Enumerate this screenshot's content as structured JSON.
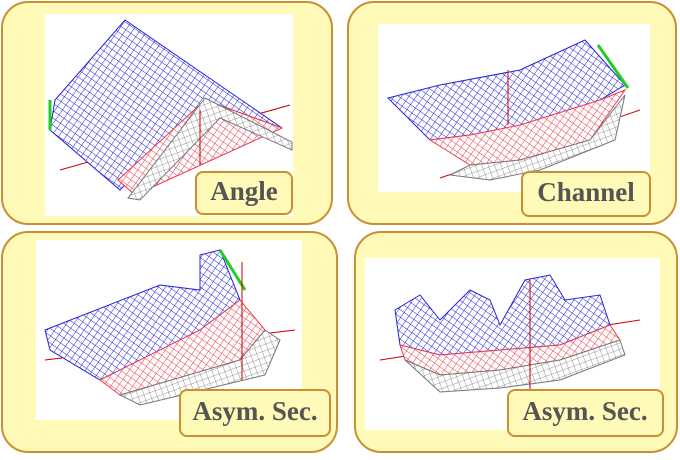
{
  "panels": [
    {
      "label": "Angle"
    },
    {
      "label": "Channel"
    },
    {
      "label": "Asym. Sec."
    },
    {
      "label": "Asym. Sec."
    }
  ]
}
